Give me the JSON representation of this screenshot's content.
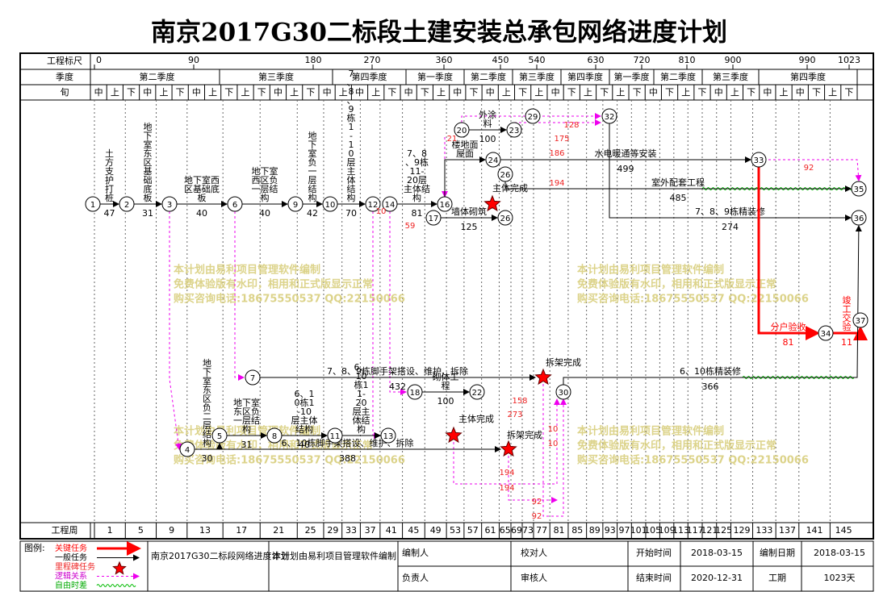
{
  "title": "南京2017G30二标段土建安装总承包网络进度计划",
  "header": {
    "scale_label": "工程标尺",
    "quarter_label": "季度",
    "xun_label": "旬",
    "week_label": "工程周"
  },
  "scale_ticks": [
    0,
    90,
    180,
    270,
    360,
    450,
    540,
    630,
    720,
    810,
    900,
    990,
    1023
  ],
  "quarters": [
    "第二季度",
    "第三季度",
    "第四季度",
    "第一季度",
    "第二季度",
    "第三季度",
    "第四季度",
    "第一季度",
    "第二季度",
    "第三季度",
    "第四季度"
  ],
  "xun": [
    "中",
    "上",
    "下",
    "中",
    "上",
    "下",
    "中",
    "上",
    "下",
    "上",
    "下",
    "中",
    "上",
    "下",
    "中",
    "上",
    "中",
    "上",
    "下",
    "中",
    "下",
    "上",
    "中",
    "下",
    "中",
    "上",
    "下",
    "上",
    "中",
    "下",
    "上",
    "下",
    "上",
    "下",
    "中",
    "下",
    "上",
    "下",
    "中",
    "上",
    "下",
    "中",
    "上",
    "中",
    "下",
    "上",
    "下"
  ],
  "weeks": [
    1,
    5,
    9,
    13,
    17,
    21,
    25,
    29,
    33,
    37,
    41,
    45,
    49,
    53,
    57,
    61,
    65,
    69,
    73,
    77,
    81,
    85,
    89,
    93,
    97,
    101,
    105,
    109,
    113,
    117,
    121,
    125,
    129,
    133,
    137,
    141,
    145
  ],
  "nodes": [
    1,
    2,
    3,
    6,
    9,
    10,
    12,
    14,
    16,
    17,
    26,
    24,
    26,
    20,
    23,
    29,
    32,
    33,
    35,
    36,
    34,
    37,
    7,
    4,
    5,
    8,
    11,
    13,
    18,
    22,
    30
  ],
  "tasks": [
    {
      "label": "土方支护打桩",
      "duration": 47
    },
    {
      "label": "地下室东区基础底板",
      "duration": 31
    },
    {
      "label": "地下室西区基础底板",
      "duration": 40
    },
    {
      "label": "地下室西区负一层结构",
      "duration": 40
    },
    {
      "label": "地下室负一层结构",
      "duration": 42
    },
    {
      "label": "7、8、9栋1-10层主体结构",
      "duration": 70
    },
    {
      "label": "7、8、9栋11-20层主体结构",
      "duration": 81
    },
    {
      "label": "墙体砌筑",
      "duration": 125
    },
    {
      "label": "楼地面屋面"
    },
    {
      "label": "水电暖通等安装",
      "duration": 499
    },
    {
      "label": "室外配套工程",
      "duration": 485
    },
    {
      "label": "7、8、9栋精装修",
      "duration": 274
    },
    {
      "label": "外涂料",
      "duration": 100
    },
    {
      "label": "分户验收",
      "duration": 81
    },
    {
      "label": "竣工交验",
      "duration": 11
    },
    {
      "label": "7、8、9栋脚手架搭设、维护、拆除",
      "duration": 432
    },
    {
      "label": "6、10栋精装修",
      "duration": 366
    },
    {
      "label": "地下室东区负二层结构",
      "duration": 30
    },
    {
      "label": "地下室东区负一层结构",
      "duration": 31
    },
    {
      "label": "6、10栋1-10层主体结构",
      "duration": 40
    },
    {
      "label": "6、10栋11-20层主体结构"
    },
    {
      "label": "6、10栋脚手架搭设、维护、拆除",
      "duration": 388
    },
    {
      "label": "砌体工程",
      "duration": 100
    }
  ],
  "annotations": [
    "拆架完成",
    "拆架完成",
    "主体完成",
    "主体完成"
  ],
  "float_values": [
    128,
    175,
    186,
    194,
    21,
    10,
    59,
    92,
    158,
    273,
    10,
    10,
    194,
    194,
    92,
    92
  ],
  "watermark": [
    "本计划由易利项目管理软件编制",
    "免费体验版有水印，相用和正式版显示正常",
    "购买咨询电话:18675550537 QQ:22150066"
  ],
  "footer": {
    "legend_title": "图例:",
    "legend": [
      "关键任务",
      "一般任务",
      "里程碑任务",
      "逻辑关系",
      "自由时差"
    ],
    "project": "南京2017G30二标段网络进度计划",
    "software": "本计划由易利项目管理软件编制",
    "compiler": "编制人",
    "leader": "负责人",
    "checker": "校对人",
    "reviewer": "审核人",
    "start_label": "开始时间",
    "start": "2018-03-15",
    "end_label": "结束时间",
    "end": "2020-12-31",
    "date_label": "编制日期",
    "date": "2018-03-15",
    "period_label": "工期",
    "period": "1023天"
  }
}
